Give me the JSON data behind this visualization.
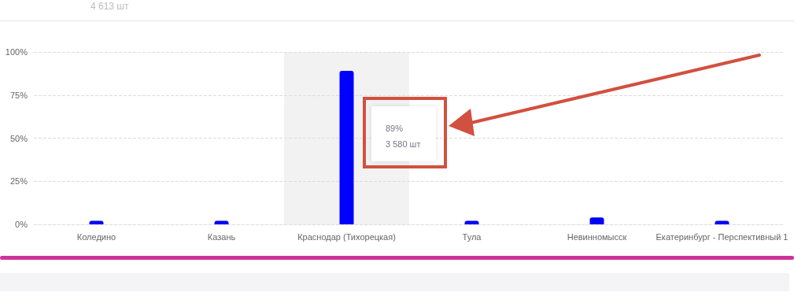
{
  "chart_data": {
    "type": "bar",
    "categories": [
      "Коледино",
      "Казань",
      "Краснодар (Тихорецкая)",
      "Тула",
      "Невинномысск",
      "Екатеринбург - Перспективный 1"
    ],
    "values": [
      2,
      2,
      89,
      2,
      4,
      2
    ],
    "color": "#0000ff",
    "ylim": [
      0,
      100
    ],
    "yticks": [
      {
        "value": 0,
        "label": "0%"
      },
      {
        "value": 25,
        "label": "25%"
      },
      {
        "value": 50,
        "label": "50%"
      },
      {
        "value": 75,
        "label": "75%"
      },
      {
        "value": 100,
        "label": "100%"
      }
    ],
    "grid": "y",
    "bands": [
      {
        "axis": "x",
        "from": "Краснодар (Тихорецкая)",
        "to": "Краснодар (Тихорецкая)",
        "color": "#f2f2f3"
      }
    ],
    "annotations": [
      "4 613 шт",
      "89%\n3 580 шт"
    ]
  }
}
